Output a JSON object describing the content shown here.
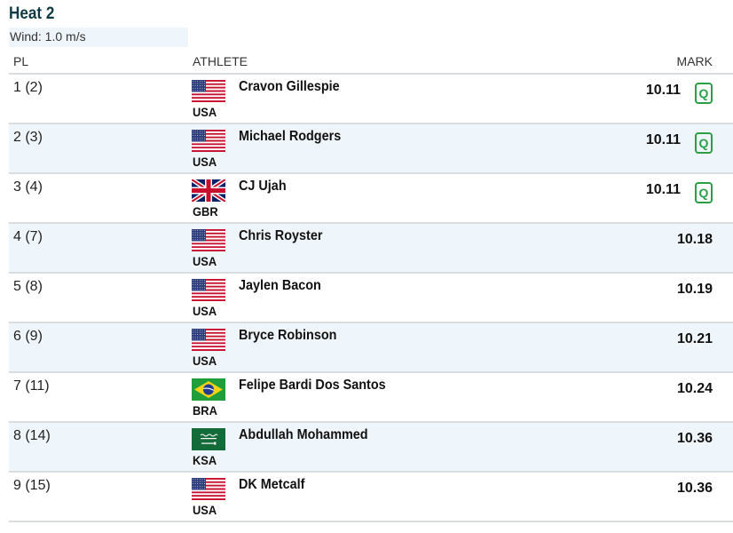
{
  "heat": {
    "title": "Heat 2",
    "wind": "Wind: 1.0 m/s"
  },
  "columns": {
    "pl": "PL",
    "athlete": "ATHLETE",
    "mark": "MARK"
  },
  "accent": {
    "qualified_green": "#2e9e46",
    "title_color": "#0f3a44",
    "alt_row": "#eff6fb"
  },
  "rows": [
    {
      "pl": "1 (2)",
      "flag": "usa-flag",
      "country": "USA",
      "name": "Cravon Gillespie",
      "mark": "10.11",
      "q": "Q"
    },
    {
      "pl": "2 (3)",
      "flag": "usa-flag",
      "country": "USA",
      "name": "Michael Rodgers",
      "mark": "10.11",
      "q": "Q"
    },
    {
      "pl": "3 (4)",
      "flag": "gbr-flag",
      "country": "GBR",
      "name": "CJ Ujah",
      "mark": "10.11",
      "q": "Q"
    },
    {
      "pl": "4 (7)",
      "flag": "usa-flag",
      "country": "USA",
      "name": "Chris Royster",
      "mark": "10.18"
    },
    {
      "pl": "5 (8)",
      "flag": "usa-flag",
      "country": "USA",
      "name": "Jaylen Bacon",
      "mark": "10.19"
    },
    {
      "pl": "6 (9)",
      "flag": "usa-flag",
      "country": "USA",
      "name": "Bryce Robinson",
      "mark": "10.21"
    },
    {
      "pl": "7 (11)",
      "flag": "brazil-flag",
      "country": "BRA",
      "name": "Felipe Bardi Dos Santos",
      "mark": "10.24"
    },
    {
      "pl": "8 (14)",
      "flag": "ksa-flag",
      "country": "KSA",
      "name": "Abdullah Mohammed",
      "mark": "10.36"
    },
    {
      "pl": "9 (15)",
      "flag": "usa-flag",
      "country": "USA",
      "name": "DK Metcalf",
      "mark": "10.36"
    }
  ]
}
